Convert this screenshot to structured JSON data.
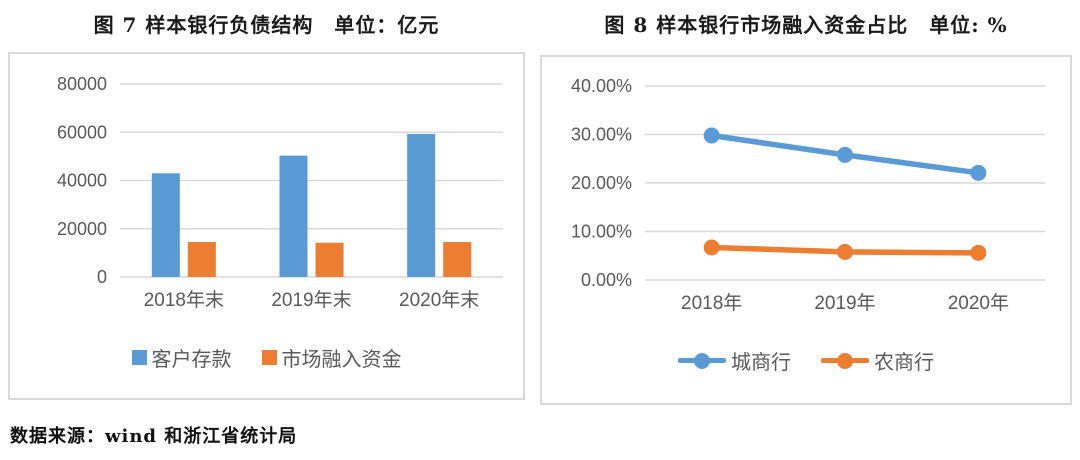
{
  "colors": {
    "series_blue": "#5B9BD5",
    "series_orange": "#ED7D31",
    "gridline": "#D9D9D9",
    "panel_border": "#D9D9D9",
    "tick_text": "#595959",
    "title_text": "#1a1a1a",
    "background": "#ffffff"
  },
  "chart_data": [
    {
      "type": "bar",
      "title": "图 7 样本银行负债结构　单位：亿元",
      "categories": [
        "2018年末",
        "2019年末",
        "2020年末"
      ],
      "series": [
        {
          "name": "客户存款",
          "color": "#5B9BD5",
          "values": [
            43000,
            50300,
            59300
          ]
        },
        {
          "name": "市场融入资金",
          "color": "#ED7D31",
          "values": [
            14500,
            14200,
            14500
          ]
        }
      ],
      "ylim": [
        0,
        80000
      ],
      "yticks": [
        0,
        20000,
        40000,
        60000,
        80000
      ],
      "ytick_labels": [
        "0",
        "20000",
        "40000",
        "60000",
        "80000"
      ],
      "grid": true,
      "legend_position": "bottom"
    },
    {
      "type": "line",
      "title": "图 8 样本银行市场融入资金占比　单位: %",
      "categories": [
        "2018年",
        "2019年",
        "2020年"
      ],
      "series": [
        {
          "name": "城商行",
          "color": "#5B9BD5",
          "values": [
            29.8,
            25.8,
            22.1
          ]
        },
        {
          "name": "农商行",
          "color": "#ED7D31",
          "values": [
            6.7,
            5.8,
            5.6
          ]
        }
      ],
      "ylim": [
        0,
        40
      ],
      "yticks": [
        0,
        10,
        20,
        30,
        40
      ],
      "ytick_labels": [
        "0.00%",
        "10.00%",
        "20.00%",
        "30.00%",
        "40.00%"
      ],
      "grid": true,
      "legend_position": "bottom"
    }
  ],
  "footer": {
    "source_text": "数据来源：wind 和浙江省统计局"
  }
}
